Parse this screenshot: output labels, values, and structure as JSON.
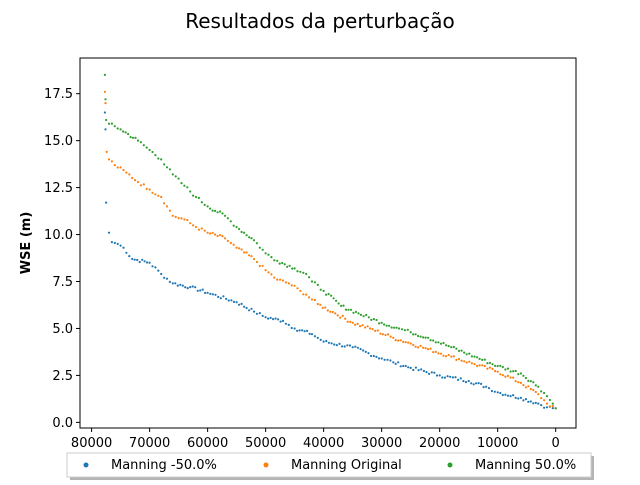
{
  "chart_data": {
    "type": "scatter",
    "title": "Resultados da perturbação",
    "xlabel": "",
    "ylabel": "WSE (m)",
    "xlim": [
      82000,
      -3500
    ],
    "ylim": [
      -0.3,
      19.4
    ],
    "x_axis_inverted": true,
    "xticks": [
      80000,
      70000,
      60000,
      50000,
      40000,
      30000,
      20000,
      10000,
      0
    ],
    "xtick_labels": [
      "80000",
      "70000",
      "60000",
      "50000",
      "40000",
      "30000",
      "20000",
      "10000",
      "0"
    ],
    "yticks": [
      0.0,
      2.5,
      5.0,
      7.5,
      10.0,
      12.5,
      15.0,
      17.5
    ],
    "ytick_labels": [
      "0.0",
      "2.5",
      "5.0",
      "7.5",
      "10.0",
      "12.5",
      "15.0",
      "17.5"
    ],
    "grid": false,
    "legend_position": "bottom-center",
    "series": [
      {
        "name": "Manning -50.0%",
        "color": "#1f77b4",
        "points": [
          [
            77700,
            16.5
          ],
          [
            77600,
            15.6
          ],
          [
            77500,
            11.7
          ],
          [
            77000,
            10.1
          ],
          [
            76500,
            9.6
          ],
          [
            75500,
            9.5
          ],
          [
            74500,
            9.3
          ],
          [
            73000,
            8.7
          ],
          [
            70000,
            8.5
          ],
          [
            68000,
            7.9
          ],
          [
            66000,
            7.4
          ],
          [
            63000,
            7.2
          ],
          [
            60000,
            6.9
          ],
          [
            55000,
            6.4
          ],
          [
            52000,
            5.9
          ],
          [
            50000,
            5.6
          ],
          [
            47000,
            5.4
          ],
          [
            45000,
            5.0
          ],
          [
            42000,
            4.7
          ],
          [
            40000,
            4.3
          ],
          [
            35000,
            4.0
          ],
          [
            30000,
            3.4
          ],
          [
            28000,
            3.2
          ],
          [
            25000,
            2.9
          ],
          [
            20000,
            2.5
          ],
          [
            15000,
            2.2
          ],
          [
            12000,
            1.9
          ],
          [
            10000,
            1.6
          ],
          [
            6000,
            1.3
          ],
          [
            3000,
            1.0
          ],
          [
            1500,
            0.8
          ],
          [
            0,
            0.75
          ]
        ]
      },
      {
        "name": "Manning Original",
        "color": "#ff7f0e",
        "points": [
          [
            77700,
            17.6
          ],
          [
            77600,
            17.0
          ],
          [
            77400,
            14.4
          ],
          [
            77000,
            14.0
          ],
          [
            76000,
            13.7
          ],
          [
            74000,
            13.3
          ],
          [
            72000,
            12.8
          ],
          [
            70000,
            12.4
          ],
          [
            68000,
            12.0
          ],
          [
            67000,
            11.5
          ],
          [
            66000,
            11.0
          ],
          [
            64000,
            10.8
          ],
          [
            62000,
            10.4
          ],
          [
            60000,
            10.1
          ],
          [
            57000,
            9.8
          ],
          [
            55000,
            9.3
          ],
          [
            52000,
            8.7
          ],
          [
            50000,
            8.1
          ],
          [
            48000,
            7.6
          ],
          [
            46000,
            7.4
          ],
          [
            44000,
            7.0
          ],
          [
            43000,
            6.8
          ],
          [
            41000,
            6.3
          ],
          [
            38000,
            5.8
          ],
          [
            35000,
            5.3
          ],
          [
            32000,
            5.0
          ],
          [
            28000,
            4.5
          ],
          [
            25000,
            4.2
          ],
          [
            22000,
            3.9
          ],
          [
            18000,
            3.5
          ],
          [
            14000,
            3.1
          ],
          [
            10000,
            2.7
          ],
          [
            6000,
            2.1
          ],
          [
            3000,
            1.5
          ],
          [
            1500,
            1.0
          ],
          [
            0,
            0.75
          ]
        ]
      },
      {
        "name": "Manning 50.0%",
        "color": "#2ca02c",
        "points": [
          [
            77700,
            18.5
          ],
          [
            77600,
            17.2
          ],
          [
            77500,
            16.1
          ],
          [
            77000,
            15.9
          ],
          [
            75000,
            15.6
          ],
          [
            72000,
            15.0
          ],
          [
            70000,
            14.5
          ],
          [
            68000,
            14.0
          ],
          [
            66000,
            13.2
          ],
          [
            64000,
            12.6
          ],
          [
            62000,
            12.0
          ],
          [
            60000,
            11.5
          ],
          [
            57000,
            11.0
          ],
          [
            55000,
            10.4
          ],
          [
            52000,
            9.7
          ],
          [
            50000,
            9.0
          ],
          [
            48000,
            8.6
          ],
          [
            45000,
            8.2
          ],
          [
            43000,
            7.9
          ],
          [
            42000,
            7.5
          ],
          [
            40000,
            7.0
          ],
          [
            37000,
            6.2
          ],
          [
            34000,
            5.8
          ],
          [
            30000,
            5.3
          ],
          [
            27000,
            5.0
          ],
          [
            25000,
            4.8
          ],
          [
            22000,
            4.5
          ],
          [
            18000,
            4.0
          ],
          [
            14000,
            3.5
          ],
          [
            10000,
            3.0
          ],
          [
            6000,
            2.6
          ],
          [
            3000,
            1.9
          ],
          [
            1500,
            1.4
          ],
          [
            500,
            1.0
          ],
          [
            0,
            0.75
          ]
        ]
      }
    ]
  }
}
